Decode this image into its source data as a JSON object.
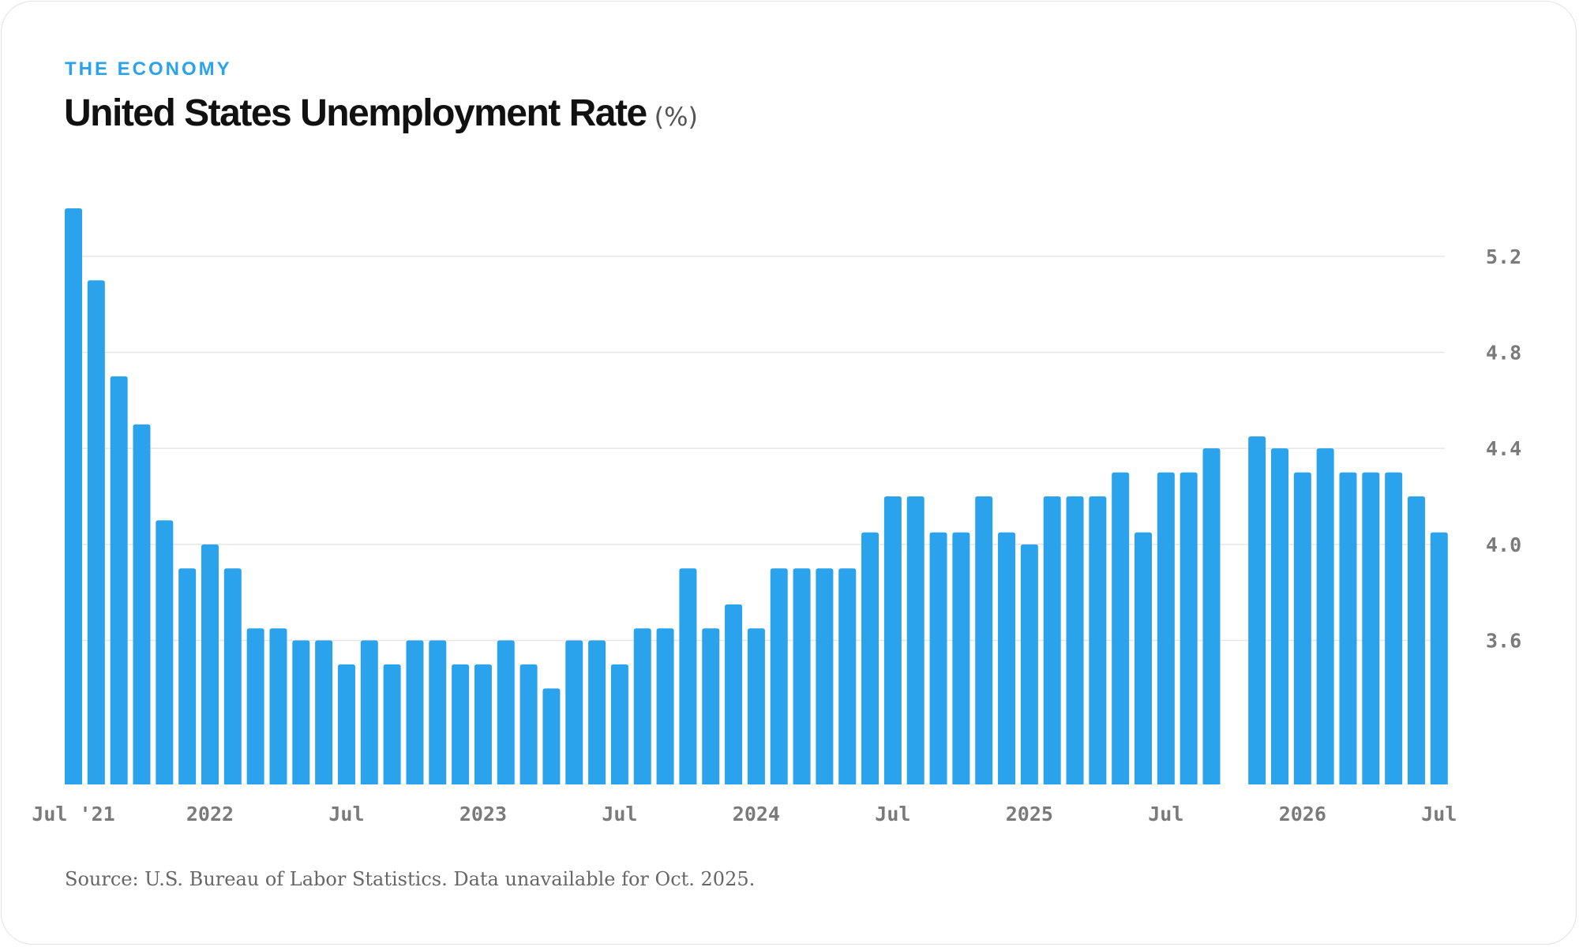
{
  "header": {
    "kicker": "THE ECONOMY",
    "title": "United States Unemployment Rate",
    "unit": "(%)"
  },
  "footer": {
    "source": "Source: U.S. Bureau of Labor Statistics. Data unavailable for Oct. 2025."
  },
  "colors": {
    "bar": "#2aa3ec",
    "kicker": "#2aa3ec",
    "grid": "#e6e6e6",
    "tick_text": "#7a7a7a"
  },
  "chart_data": {
    "type": "bar",
    "title": "United States Unemployment Rate",
    "ylabel": "",
    "xlabel": "",
    "y_axis_position": "right",
    "grid": true,
    "ylim": [
      3.0,
      5.4
    ],
    "yticks": [
      3.6,
      4.0,
      4.4,
      4.8,
      5.2
    ],
    "categories": [
      "2021-07",
      "2021-08",
      "2021-09",
      "2021-10",
      "2021-11",
      "2021-12",
      "2022-01",
      "2022-02",
      "2022-03",
      "2022-04",
      "2022-05",
      "2022-06",
      "2022-07",
      "2022-08",
      "2022-09",
      "2022-10",
      "2022-11",
      "2022-12",
      "2023-01",
      "2023-02",
      "2023-03",
      "2023-04",
      "2023-05",
      "2023-06",
      "2023-07",
      "2023-08",
      "2023-09",
      "2023-10",
      "2023-11",
      "2023-12",
      "2024-01",
      "2024-02",
      "2024-03",
      "2024-04",
      "2024-05",
      "2024-06",
      "2024-07",
      "2024-08",
      "2024-09",
      "2024-10",
      "2024-11",
      "2024-12",
      "2025-01",
      "2025-02",
      "2025-03",
      "2025-04",
      "2025-05",
      "2025-06",
      "2025-07",
      "2025-08",
      "2025-09",
      "2025-10",
      "2025-11",
      "2025-12",
      "2026-01",
      "2026-02",
      "2026-03",
      "2026-04",
      "2026-05",
      "2026-06",
      "2026-07",
      "2026-08"
    ],
    "values": [
      5.4,
      5.1,
      4.7,
      4.5,
      4.1,
      3.9,
      4.0,
      3.9,
      3.65,
      3.65,
      3.6,
      3.6,
      3.5,
      3.6,
      3.5,
      3.6,
      3.6,
      3.5,
      3.5,
      3.6,
      3.5,
      3.4,
      3.6,
      3.6,
      3.5,
      3.65,
      3.65,
      3.9,
      3.65,
      3.75,
      3.65,
      3.9,
      3.9,
      3.9,
      3.9,
      4.05,
      4.2,
      4.2,
      4.05,
      4.05,
      4.2,
      4.05,
      4.0,
      4.2,
      4.2,
      4.2,
      4.3,
      4.05,
      4.3,
      4.3,
      4.4,
      null,
      4.45,
      4.4,
      4.3,
      4.4,
      4.3,
      4.3,
      4.3,
      4.2,
      4.05,
      null
    ],
    "xticks": [
      {
        "index": 0,
        "label": "Jul '21"
      },
      {
        "index": 6,
        "label": "2022"
      },
      {
        "index": 12,
        "label": "Jul"
      },
      {
        "index": 18,
        "label": "2023"
      },
      {
        "index": 24,
        "label": "Jul"
      },
      {
        "index": 30,
        "label": "2024"
      },
      {
        "index": 36,
        "label": "Jul"
      },
      {
        "index": 42,
        "label": "2025"
      },
      {
        "index": 48,
        "label": "Jul"
      },
      {
        "index": 54,
        "label": "2026"
      },
      {
        "index": 60,
        "label": "Jul"
      }
    ],
    "ytick_labels": [
      "3.6",
      "4.0",
      "4.4",
      "4.8",
      "5.2"
    ]
  }
}
